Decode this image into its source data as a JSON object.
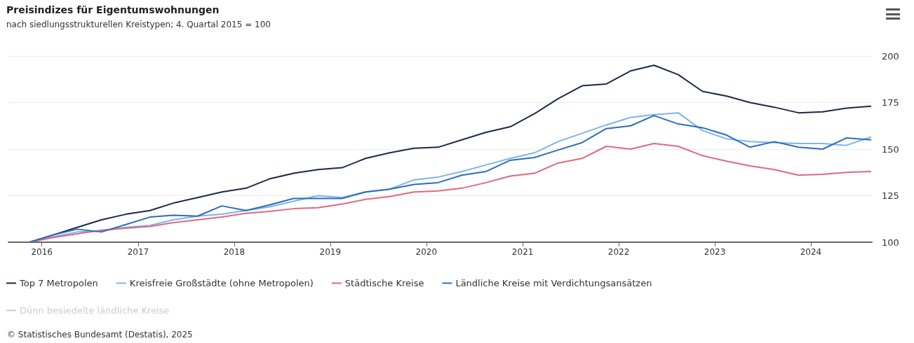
{
  "chart_data": {
    "type": "line",
    "title": "Preisindizes für Eigentumswohnungen",
    "subtitle": "nach siedlungsstrukturellen Kreistypen; 4. Quartal 2015 = 100",
    "annotations": [
      "© Statistisches Bundesamt (Destatis), 2025"
    ],
    "x": [
      "2015-11-15",
      "2016-02-15",
      "2016-05-15",
      "2016-08-15",
      "2016-11-15",
      "2017-02-15",
      "2017-05-15",
      "2017-08-15",
      "2017-11-15",
      "2018-02-15",
      "2018-05-15",
      "2018-08-15",
      "2018-11-15",
      "2019-02-15",
      "2019-05-15",
      "2019-08-15",
      "2019-11-15",
      "2020-02-15",
      "2020-05-15",
      "2020-08-15",
      "2020-11-15",
      "2021-02-15",
      "2021-05-15",
      "2021-08-15",
      "2021-11-15",
      "2022-02-15",
      "2022-05-15",
      "2022-08-15",
      "2022-11-15",
      "2023-02-15",
      "2023-05-15",
      "2023-08-15",
      "2023-11-15",
      "2024-02-15",
      "2024-05-15",
      "2024-08-15"
    ],
    "series": [
      {
        "name": "Top 7 Metropolen",
        "color": "#1b2a47",
        "values": [
          100,
          104,
          108,
          112,
          115,
          117,
          121,
          124,
          127,
          129,
          134,
          137,
          139,
          140,
          145,
          148,
          150.5,
          151,
          155,
          159,
          162,
          169,
          177,
          184,
          185,
          192,
          195,
          190,
          181,
          178.5,
          175,
          172.5,
          169.5,
          170,
          172,
          173
        ]
      },
      {
        "name": "Kreisfreie Großstädte (ohne Metropolen)",
        "color": "#7db4ea",
        "values": [
          100,
          103,
          105.5,
          106,
          108,
          109,
          112,
          114,
          115,
          117,
          119,
          122,
          125,
          124,
          127,
          128.5,
          133.5,
          135,
          138,
          141.5,
          145,
          148,
          154,
          158.5,
          163,
          167,
          168.5,
          169.5,
          160,
          155.5,
          154,
          153.5,
          153,
          153,
          152,
          156.5
        ]
      },
      {
        "name": "Städtische Kreise",
        "color": "#e3677f",
        "values": [
          100,
          102.5,
          104.5,
          106.5,
          107.5,
          108.5,
          110.5,
          112,
          113.5,
          115.5,
          116.5,
          118,
          118.5,
          120.5,
          123,
          124.5,
          127,
          127.5,
          129,
          132,
          135.5,
          137,
          142.5,
          145,
          151.5,
          150,
          153,
          151.5,
          146.5,
          143.5,
          141,
          139,
          136,
          136.5,
          137.5,
          138
        ]
      },
      {
        "name": "Ländliche Kreise mit Verdichtungsansätzen",
        "color": "#2d6cbd",
        "values": [
          100,
          104,
          107,
          105.5,
          109.5,
          113.5,
          114.5,
          114,
          119.5,
          117,
          120,
          123.5,
          123.5,
          123.5,
          127,
          128.5,
          131,
          132,
          136,
          138,
          144,
          145.5,
          149.5,
          153.5,
          161,
          162.5,
          168,
          163.5,
          161.5,
          157.5,
          151,
          154,
          151,
          150,
          156,
          155
        ]
      },
      {
        "name": "Dünn besiedelte ländliche Kreise",
        "values": [
          null,
          null,
          null,
          null,
          null,
          null,
          null,
          null,
          null,
          null,
          null,
          null,
          null,
          null,
          null,
          null,
          null,
          null,
          null,
          null,
          null,
          null,
          null,
          null,
          null,
          null,
          null,
          null,
          null,
          null,
          null,
          null,
          null,
          null,
          null,
          null
        ]
      }
    ],
    "xlim": [
      "2015-08-27",
      "2024-08-20"
    ],
    "xticks": [
      "2016",
      "2017",
      "2018",
      "2019",
      "2020",
      "2021",
      "2022",
      "2023",
      "2024"
    ],
    "ylim": [
      100,
      200
    ],
    "yticks": [
      100,
      125,
      150,
      175,
      200
    ],
    "grid": "y",
    "legend": "bottom",
    "marker": "none",
    "line_style": "solid"
  }
}
